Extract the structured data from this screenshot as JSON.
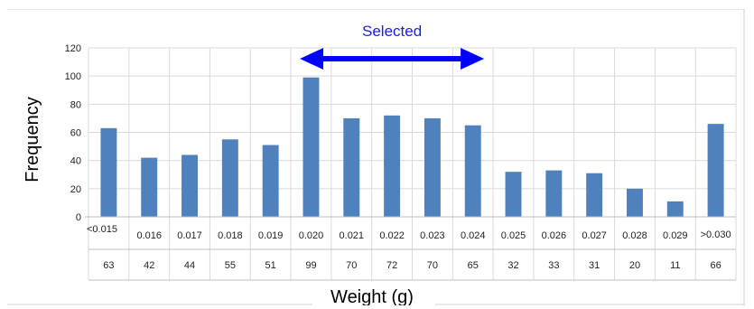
{
  "chart_data": {
    "type": "bar",
    "categories": [
      "<0.015",
      "0.016",
      "0.017",
      "0.018",
      "0.019",
      "0.020",
      "0.021",
      "0.022",
      "0.023",
      "0.024",
      "0.025",
      "0.026",
      "0.027",
      "0.028",
      "0.029",
      ">0.030"
    ],
    "values": [
      63,
      42,
      44,
      55,
      51,
      99,
      70,
      72,
      70,
      65,
      32,
      33,
      31,
      20,
      11,
      66
    ],
    "table_values": [
      "63",
      "42",
      "44",
      "55",
      "51",
      "99",
      "70",
      "72",
      "70",
      "65",
      "32",
      "33",
      "31",
      "20",
      "11",
      "66"
    ],
    "title": "",
    "xlabel": "Weight (g)",
    "ylabel": "Frequency",
    "ylim": [
      0,
      120
    ],
    "yticks": [
      0,
      20,
      40,
      60,
      80,
      100,
      120
    ],
    "grid": true,
    "bar_color": "#4f81bd",
    "annotation": {
      "text": "Selected",
      "color": "#0000ff",
      "from_category": "0.020",
      "to_category": "0.024"
    }
  }
}
